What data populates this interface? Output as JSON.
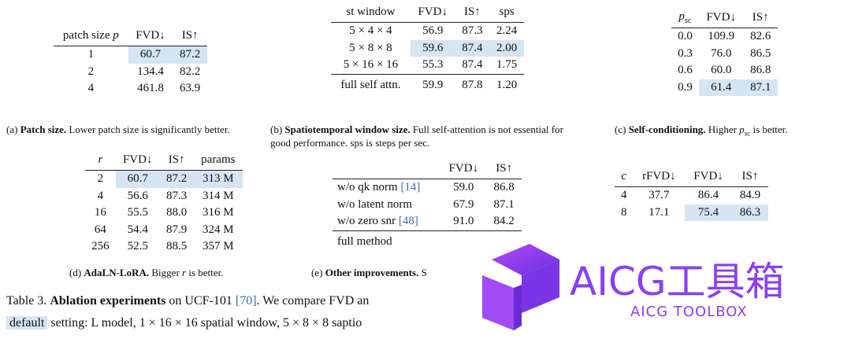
{
  "tables": {
    "a": {
      "header": [
        {
          "text": "patch size",
          "var": "p"
        },
        "FVD↓",
        "IS↑"
      ],
      "rows": [
        [
          "1",
          "60.7",
          "87.2"
        ],
        [
          "2",
          "134.4",
          "82.2"
        ],
        [
          "4",
          "461.8",
          "63.9"
        ]
      ],
      "caption": {
        "label": "(a)",
        "title": "Patch size.",
        "text": "Lower patch size is significantly better."
      }
    },
    "b": {
      "header": [
        "st window",
        "FVD↓",
        "IS↑",
        "sps"
      ],
      "rows": [
        [
          "5 × 4 × 4",
          "56.9",
          "87.3",
          "2.24"
        ],
        [
          "5 × 8 × 8",
          "59.6",
          "87.4",
          "2.00"
        ],
        [
          "5 × 16 × 16",
          "55.3",
          "87.4",
          "1.75"
        ],
        [
          "full self attn.",
          "59.9",
          "87.8",
          "1.20"
        ]
      ],
      "caption": {
        "label": "(b)",
        "title": "Spatiotemporal window size.",
        "text": "Full self-attention is not essential for good performance. sps is steps per sec."
      }
    },
    "c": {
      "header": [
        {
          "var": "p",
          "sub": "sc"
        },
        "FVD↓",
        "IS↑"
      ],
      "rows": [
        [
          "0.0",
          "109.9",
          "82.6"
        ],
        [
          "0.3",
          "76.0",
          "86.5"
        ],
        [
          "0.6",
          "60.0",
          "86.8"
        ],
        [
          "0.9",
          "61.4",
          "87.1"
        ]
      ],
      "caption": {
        "label": "(c)",
        "title": "Self-conditioning.",
        "text": "Higher",
        "var": "p",
        "sub": "sc",
        "text2": "is better."
      }
    },
    "d": {
      "header": [
        {
          "var": "r"
        },
        "FVD↓",
        "IS↑",
        "params"
      ],
      "rows": [
        [
          "2",
          "60.7",
          "87.2",
          "313 M"
        ],
        [
          "4",
          "56.6",
          "87.3",
          "314 M"
        ],
        [
          "16",
          "55.5",
          "88.0",
          "316 M"
        ],
        [
          "64",
          "54.4",
          "87.9",
          "324 M"
        ],
        [
          "256",
          "52.5",
          "88.5",
          "357 M"
        ]
      ],
      "caption": {
        "label": "(d)",
        "title": "AdaLN-LoRA.",
        "text": "Bigger",
        "var": "r",
        "text2": "is better."
      }
    },
    "e": {
      "header": [
        "FVD↓",
        "IS↑"
      ],
      "rows": [
        [
          {
            "text": "w/o qk norm",
            "cite": "[14]"
          },
          "59.0",
          "86.8"
        ],
        [
          "w/o latent norm",
          "67.9",
          "87.1"
        ],
        [
          {
            "text": "w/o zero snr",
            "cite": "[48]"
          },
          "91.0",
          "84.2"
        ],
        [
          "full method"
        ]
      ],
      "caption": {
        "label": "(e)",
        "title": "Other improvements.",
        "text": "S"
      }
    },
    "f": {
      "header": [
        {
          "var": "c"
        },
        "rFVD↓",
        "FVD↓",
        "IS↑"
      ],
      "rows": [
        [
          "4",
          "37.7",
          "86.4",
          "84.9"
        ],
        [
          "8",
          "17.1",
          "75.4",
          "86.3"
        ]
      ]
    }
  },
  "caption": {
    "line1": {
      "label": "Table 3.",
      "title": "Ablation experiments",
      "text": "on UCF-101",
      "cite": "[70]",
      "text2": ". We compare FVD an"
    },
    "line2": {
      "highlight": "default",
      "text": "setting: L model, 1 × 16 × 16 spatial window, 5 × 8 × 8 saptio"
    }
  },
  "watermark": {
    "title": "AICG工具箱",
    "subtitle": "AICG TOOLBOX"
  }
}
